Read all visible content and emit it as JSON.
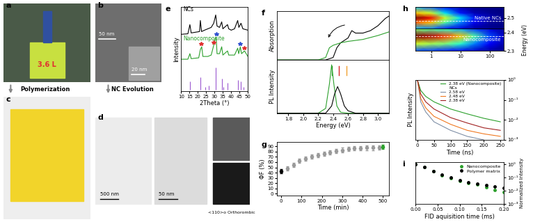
{
  "images": [
    {
      "panel": "a",
      "texts": [
        "3.6 L"
      ]
    },
    {
      "panel": "b",
      "texts": [
        "50 nm",
        "20 nm"
      ]
    },
    {
      "panel": "c",
      "texts": []
    },
    {
      "panel": "d",
      "texts": [
        "500 nm",
        "50 nm",
        "<110>o Orthorombic"
      ]
    }
  ],
  "steps": [
    "Polymerization",
    "NC Evolution"
  ],
  "chart_data": [
    {
      "panel": "e",
      "type": "line",
      "xlabel": "2Theta (°)",
      "ylabel": "Intensity",
      "xlim": [
        10,
        50
      ],
      "xticks": [
        10,
        15,
        20,
        25,
        30,
        35,
        40,
        45,
        50
      ],
      "ylim": [
        -0.05,
        3.0
      ],
      "tick_labels": "x",
      "series": [
        {
          "name": "NCs",
          "color": "#000000",
          "x": [
            10,
            14,
            15.2,
            16,
            21,
            21.5,
            22.2,
            24,
            26,
            28,
            29.5,
            30.7,
            31.5,
            33,
            34.3,
            35,
            37.8,
            38.5,
            40,
            42,
            43.9,
            44.6,
            45.9,
            47,
            50
          ],
          "values": [
            2.0,
            2.02,
            2.35,
            2.05,
            2.1,
            2.5,
            2.1,
            2.15,
            2.2,
            2.25,
            2.4,
            2.7,
            2.3,
            2.25,
            2.45,
            2.2,
            2.35,
            2.2,
            2.15,
            2.2,
            2.5,
            2.25,
            2.4,
            2.2,
            2.15
          ]
        },
        {
          "name": "Nanocomposite",
          "color": "#2ca02c",
          "x": [
            10,
            14,
            15.2,
            16,
            20.5,
            21.5,
            22.3,
            23,
            26,
            28,
            29.5,
            30.4,
            31,
            31.5,
            33,
            34.3,
            35,
            37.8,
            38.5,
            42,
            43.9,
            44.5,
            45.5,
            46.2,
            48,
            50
          ],
          "values": [
            1.1,
            1.1,
            1.3,
            1.12,
            1.15,
            1.45,
            1.55,
            1.2,
            1.2,
            1.25,
            1.6,
            1.85,
            1.9,
            1.3,
            1.3,
            1.55,
            1.25,
            1.4,
            1.25,
            1.25,
            1.5,
            1.3,
            1.55,
            1.3,
            1.4,
            1.2
          ]
        },
        {
          "type": "stem",
          "color": "#9b59d0",
          "x": [
            15.2,
            21.5,
            24.5,
            26.6,
            30.7,
            34.3,
            35.5,
            37.8,
            43.9,
            45.9,
            47.5
          ],
          "values": [
            0.3,
            0.45,
            0.1,
            0.15,
            0.8,
            0.4,
            0.1,
            0.25,
            0.35,
            0.3,
            0.1
          ]
        }
      ],
      "markers": {
        "marker": "star",
        "points": [
          {
            "x": 21.9,
            "y": 1.65,
            "color": "#e03030"
          },
          {
            "x": 29.5,
            "y": 1.7,
            "color": "#e03030"
          },
          {
            "x": 31.0,
            "y": 2.0,
            "color": "#3050d0"
          },
          {
            "x": 45.5,
            "y": 1.65,
            "color": "#3050d0"
          },
          {
            "x": 48.0,
            "y": 1.5,
            "color": "#e03030"
          }
        ]
      }
    },
    {
      "panel": "f",
      "type": "line",
      "ylabel": "Absorption",
      "xlim": [
        1.65,
        3.15
      ],
      "xticks": [
        1.8,
        2.0,
        2.2,
        2.4,
        2.6,
        2.8,
        3.0
      ],
      "ylim": [
        0,
        1.0
      ],
      "tick_labels": false,
      "series": [
        {
          "color": "#000000",
          "x": [
            1.6,
            2.3,
            2.4,
            2.45,
            2.5,
            2.6,
            2.65,
            2.7,
            2.8,
            2.9,
            3.0,
            3.1,
            3.2
          ],
          "values": [
            0,
            0,
            0.05,
            0.25,
            0.35,
            0.45,
            0.6,
            0.55,
            0.55,
            0.6,
            0.7,
            0.85,
            0.95
          ]
        },
        {
          "color": "#2ca02c",
          "x": [
            1.6,
            2.2,
            2.3,
            2.35,
            2.4,
            2.5,
            2.6,
            2.8,
            3.0,
            3.2
          ],
          "values": [
            0,
            0,
            0.05,
            0.25,
            0.3,
            0.35,
            0.38,
            0.42,
            0.5,
            0.6
          ]
        }
      ]
    },
    {
      "type": "line",
      "xlabel": "Energy (eV)",
      "ylabel": "PL Intensity",
      "xlim": [
        1.65,
        3.15
      ],
      "xticks": [
        1.8,
        2.0,
        2.2,
        2.4,
        2.6,
        2.8,
        3.0
      ],
      "ylim": [
        0,
        1.1
      ],
      "tick_labels": "x",
      "series": [
        {
          "color": "#2ca02c",
          "x": [
            1.6,
            2.2,
            2.3,
            2.35,
            2.38,
            2.41,
            2.45,
            2.5,
            2.6,
            3.2
          ],
          "values": [
            0,
            0,
            0.1,
            0.6,
            1.0,
            0.6,
            0.15,
            0.02,
            0,
            0
          ]
        },
        {
          "color": "#000000",
          "x": [
            1.6,
            2.3,
            2.38,
            2.42,
            2.46,
            2.5,
            2.55,
            2.6,
            2.7,
            3.2
          ],
          "values": [
            0,
            0,
            0.15,
            0.4,
            0.55,
            0.4,
            0.15,
            0.05,
            0,
            0
          ]
        }
      ],
      "marks": [
        {
          "x": 2.38,
          "color": "#2ca02c"
        },
        {
          "x": 2.48,
          "color": "#d62728"
        },
        {
          "x": 2.58,
          "color": "#f0a030"
        }
      ]
    },
    {
      "panel": "g",
      "type": "scatter",
      "xlabel": "Time (min)",
      "ylabel": "ΦF (%)",
      "xlim": [
        -20,
        530
      ],
      "xticks": [
        0,
        100,
        200,
        300,
        400,
        500
      ],
      "ylim": [
        -3,
        98
      ],
      "yticks": [
        0,
        10,
        20,
        30,
        40,
        50,
        60,
        70,
        80,
        90
      ],
      "x": [
        0,
        30,
        60,
        90,
        120,
        150,
        180,
        210,
        240,
        270,
        300,
        330,
        360,
        390,
        420,
        450,
        480,
        500
      ],
      "values": [
        43,
        48,
        55,
        62,
        67,
        70,
        73,
        76,
        79,
        81,
        83,
        85,
        86,
        86,
        87,
        87,
        88,
        89
      ],
      "errors": [
        4,
        4,
        4,
        4,
        4,
        4,
        4,
        4,
        4,
        4,
        4,
        4,
        4,
        4,
        4,
        4,
        4,
        4
      ],
      "colors": [
        "#000000",
        "#9a9a9a",
        "#9a9a9a",
        "#9a9a9a",
        "#9a9a9a",
        "#9a9a9a",
        "#9a9a9a",
        "#9a9a9a",
        "#9a9a9a",
        "#9a9a9a",
        "#9a9a9a",
        "#9a9a9a",
        "#9a9a9a",
        "#9a9a9a",
        "#9a9a9a",
        "#9a9a9a",
        "#9a9a9a",
        "#2ca02c"
      ]
    },
    {
      "panel": "h",
      "type": "heatmap",
      "ylabel": "Energy (eV)",
      "log": "x",
      "xlim": [
        0.3,
        300
      ],
      "xticks": [
        1,
        10,
        100
      ],
      "clim": [
        0,
        1
      ],
      "maps": [
        {
          "name": "Native NCs",
          "ylim": [
            2.43,
            2.57
          ],
          "yticks": [
            2.5
          ],
          "x": [
            0.3,
            1,
            3,
            10,
            30,
            100,
            300
          ],
          "y": [
            2.43,
            2.47,
            2.5,
            2.53,
            2.57
          ],
          "cells": [
            [
              0.3,
              0.25,
              0.15,
              0.08,
              0.03,
              0.01,
              0
            ],
            [
              0.8,
              0.7,
              0.45,
              0.25,
              0.1,
              0.03,
              0.01
            ],
            [
              1,
              0.9,
              0.6,
              0.35,
              0.15,
              0.05,
              0.01
            ],
            [
              0.7,
              0.6,
              0.35,
              0.15,
              0.05,
              0.02,
              0
            ],
            [
              0.3,
              0.2,
              0.1,
              0.04,
              0.01,
              0,
              0
            ]
          ],
          "marks": [
            2.48
          ]
        },
        {
          "name": "Nanocomposite",
          "ylim": [
            2.3,
            2.42
          ],
          "yticks": [
            2.3,
            2.4
          ],
          "x": [
            0.3,
            1,
            3,
            10,
            30,
            100,
            300
          ],
          "y": [
            2.3,
            2.34,
            2.38,
            2.42
          ],
          "cells": [
            [
              0.2,
              0.18,
              0.15,
              0.1,
              0.06,
              0.03,
              0.01
            ],
            [
              0.6,
              0.55,
              0.5,
              0.4,
              0.25,
              0.12,
              0.04
            ],
            [
              1,
              0.95,
              0.85,
              0.7,
              0.45,
              0.2,
              0.07
            ],
            [
              0.5,
              0.45,
              0.4,
              0.3,
              0.18,
              0.08,
              0.02
            ]
          ],
          "marks": [
            2.38
          ]
        }
      ]
    },
    {
      "type": "line",
      "xlabel": "Time (ns)",
      "ylabel": "PL Intensity",
      "log": "y",
      "xlim": [
        -5,
        260
      ],
      "xticks": [
        0,
        50,
        100,
        150,
        200,
        250
      ],
      "ylim": [
        0.001,
        1
      ],
      "yticks": [
        {
          "value": 0.001,
          "label": "10⁻³"
        },
        {
          "value": 0.01,
          "label": "10⁻²"
        },
        {
          "value": 0.1,
          "label": "10⁻¹"
        },
        {
          "value": 1,
          "label": "10⁰"
        }
      ],
      "legend": "upper right",
      "series": [
        {
          "name": "2.38 eV (Nanocomposite)",
          "color": "#2ca02c",
          "x": [
            0,
            10,
            25,
            50,
            100,
            150,
            200,
            250
          ],
          "values": [
            1,
            0.3,
            0.15,
            0.08,
            0.035,
            0.02,
            0.012,
            0.008
          ]
        }
      ],
      "groups": [
        {
          "name": "NCs",
          "series": [
            {
              "name": "2.58 eV",
              "color": "#7f8fa6",
              "x": [
                0,
                10,
                25,
                50,
                100,
                150,
                200
              ],
              "values": [
                1,
                0.08,
                0.025,
                0.008,
                0.003,
                0.0015,
                0.001
              ]
            },
            {
              "name": "2.48 eV",
              "color": "#f07820",
              "x": [
                0,
                10,
                25,
                50,
                100,
                150,
                200,
                250
              ],
              "values": [
                1,
                0.12,
                0.04,
                0.015,
                0.006,
                0.003,
                0.002,
                0.0015
              ]
            },
            {
              "name": "2.38 eV",
              "color": "#a02020",
              "x": [
                0,
                10,
                25,
                50,
                100,
                150,
                200,
                250
              ],
              "values": [
                1,
                0.2,
                0.08,
                0.035,
                0.013,
                0.007,
                0.004,
                0.003
              ]
            }
          ]
        }
      ]
    },
    {
      "panel": "i",
      "type": "scatter",
      "xlabel": "FID aquisition time (ms)",
      "ylabel": "Normalized Intensity",
      "log": "y",
      "xlim": [
        0,
        0.2
      ],
      "xticks": [
        {
          "value": 0.0,
          "label": "0.00"
        },
        {
          "value": 0.05,
          "label": "0.05"
        },
        {
          "value": 0.1,
          "label": "0.10"
        },
        {
          "value": 0.15,
          "label": "0.15"
        },
        {
          "value": 0.2,
          "label": "0.20"
        }
      ],
      "ylim": [
        0.001,
        1.5
      ],
      "yticks": [
        {
          "value": 0.001,
          "label": "10⁻³"
        },
        {
          "value": 0.01,
          "label": "10⁻²"
        },
        {
          "value": 0.1,
          "label": "10⁻¹"
        },
        {
          "value": 1,
          "label": "10⁰"
        }
      ],
      "legend": "upper right",
      "marker": "circle",
      "series": [
        {
          "name": "Nanocomposite",
          "color": "#2ca02c",
          "x": [
            0,
            0.02,
            0.04,
            0.06,
            0.08,
            0.1,
            0.12,
            0.14,
            0.16,
            0.18,
            0.2
          ],
          "values": [
            1,
            0.6,
            0.3,
            0.15,
            0.09,
            0.06,
            0.04,
            0.03,
            0.02,
            0.012,
            0.008
          ]
        },
        {
          "name": "Polymer matrix",
          "color": "#000000",
          "x": [
            0,
            0.02,
            0.04,
            0.06,
            0.08,
            0.1,
            0.12,
            0.14,
            0.16,
            0.18,
            0.2
          ],
          "values": [
            1,
            0.6,
            0.32,
            0.17,
            0.1,
            0.065,
            0.045,
            0.035,
            0.028,
            0.022,
            0.018
          ]
        }
      ]
    }
  ]
}
